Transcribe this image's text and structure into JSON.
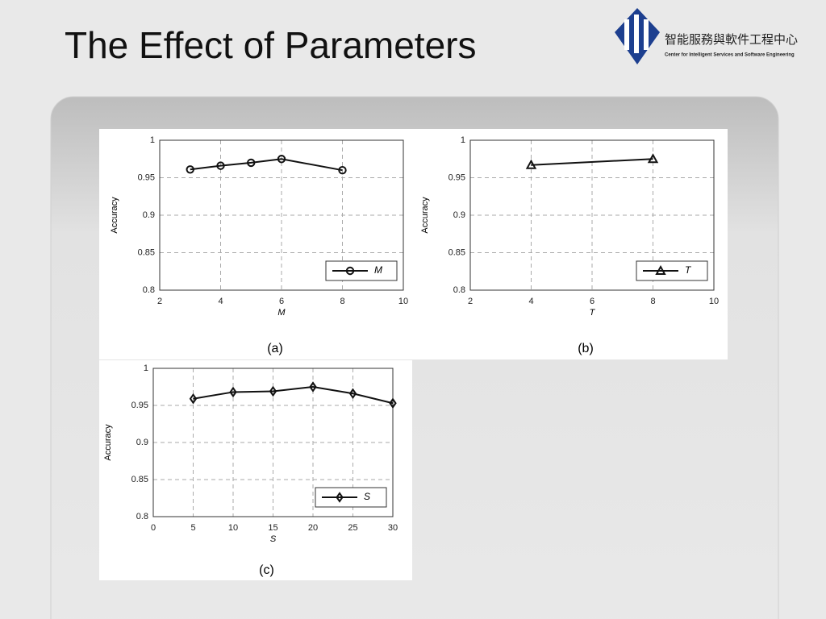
{
  "header": {
    "title": "The Effect of Parameters",
    "logo_name": "智能服務與軟件工程中心",
    "logo_subtitle": "Center for Intelligent Services and Software Engineering"
  },
  "chart_data": [
    {
      "type": "line",
      "caption": "(a)",
      "xlabel": "M",
      "ylabel": "Accuracy",
      "x": [
        3,
        4,
        5,
        6,
        8
      ],
      "series": [
        {
          "name": "M",
          "color": "#111111",
          "marker": "circle",
          "values": [
            0.961,
            0.966,
            0.97,
            0.975,
            0.96
          ]
        }
      ],
      "xlim": [
        2,
        10
      ],
      "xticks": [
        2,
        4,
        6,
        8,
        10
      ],
      "ylim": [
        0.8,
        1
      ],
      "yticks": [
        0.8,
        0.85,
        0.9,
        0.95,
        1
      ],
      "grid": true,
      "legend": "lower right"
    },
    {
      "type": "line",
      "caption": "(b)",
      "xlabel": "T",
      "ylabel": "Accuracy",
      "x": [
        4,
        8
      ],
      "series": [
        {
          "name": "T",
          "color": "#111111",
          "marker": "triangle",
          "values": [
            0.967,
            0.975
          ]
        }
      ],
      "xlim": [
        2,
        10
      ],
      "xticks": [
        2,
        4,
        6,
        8,
        10
      ],
      "ylim": [
        0.8,
        1
      ],
      "yticks": [
        0.8,
        0.85,
        0.9,
        0.95,
        1
      ],
      "grid": true,
      "legend": "lower right"
    },
    {
      "type": "line",
      "caption": "(c)",
      "xlabel": "S",
      "ylabel": "Accuracy",
      "x": [
        5,
        10,
        15,
        20,
        25,
        30
      ],
      "series": [
        {
          "name": "S",
          "color": "#111111",
          "marker": "diamond",
          "values": [
            0.959,
            0.968,
            0.969,
            0.975,
            0.966,
            0.953
          ]
        }
      ],
      "xlim": [
        0,
        30
      ],
      "xticks": [
        0,
        5,
        10,
        15,
        20,
        25,
        30
      ],
      "ylim": [
        0.8,
        1
      ],
      "yticks": [
        0.8,
        0.85,
        0.9,
        0.95,
        1
      ],
      "grid": true,
      "legend": "lower right"
    }
  ]
}
